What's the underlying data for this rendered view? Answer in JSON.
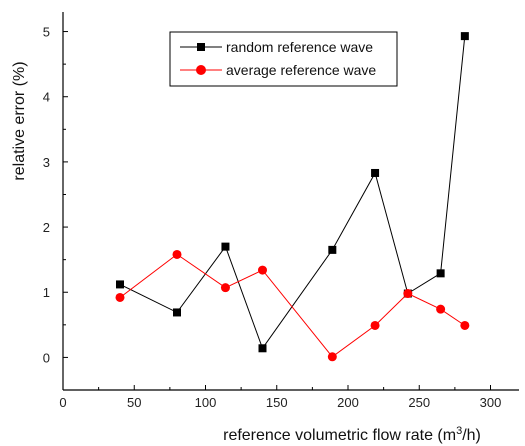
{
  "chart_data": {
    "type": "line",
    "title": "",
    "xlabel": "reference volumetric flow rate (m",
    "xlabel_sup": "3",
    "xlabel_tail": "/h)",
    "ylabel": "relative error (%)",
    "xlim": [
      0,
      320
    ],
    "ylim": [
      -0.5,
      5.3
    ],
    "xticks": [
      0,
      50,
      100,
      150,
      200,
      250,
      300
    ],
    "yticks": [
      0,
      1,
      2,
      3,
      4,
      5
    ],
    "grid": false,
    "legend_position": "top-center",
    "series": [
      {
        "name": "random reference wave",
        "color": "#000000",
        "marker": "square",
        "x": [
          40,
          80,
          114,
          140,
          189,
          219,
          242,
          265,
          282
        ],
        "y": [
          1.12,
          0.69,
          1.7,
          0.14,
          1.65,
          2.83,
          0.98,
          1.29,
          4.93
        ]
      },
      {
        "name": "average reference wave",
        "color": "#ff0000",
        "marker": "circle",
        "x": [
          40,
          80,
          114,
          140,
          189,
          219,
          242,
          265,
          282
        ],
        "y": [
          0.92,
          1.58,
          1.07,
          1.34,
          0.01,
          0.49,
          0.98,
          0.74,
          0.49
        ]
      }
    ]
  }
}
